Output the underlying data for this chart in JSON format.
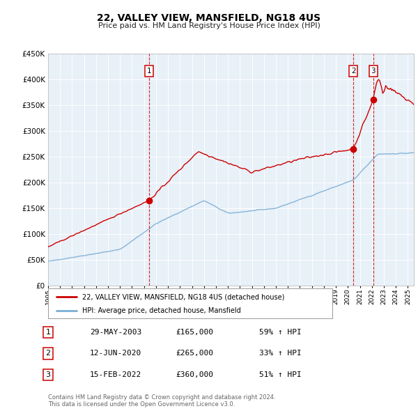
{
  "title": "22, VALLEY VIEW, MANSFIELD, NG18 4US",
  "subtitle": "Price paid vs. HM Land Registry's House Price Index (HPI)",
  "background_color": "#ffffff",
  "plot_background": "#e8f0f8",
  "grid_color": "#c8d8e8",
  "legend_label_red": "22, VALLEY VIEW, MANSFIELD, NG18 4US (detached house)",
  "legend_label_blue": "HPI: Average price, detached house, Mansfield",
  "footer": "Contains HM Land Registry data © Crown copyright and database right 2024.\nThis data is licensed under the Open Government Licence v3.0.",
  "red_color": "#cc0000",
  "blue_color": "#7aaed6",
  "sale_points": [
    {
      "label": "1",
      "date": "29-MAY-2003",
      "price": 165000,
      "hpi_pct": "59% ↑ HPI",
      "x": 2003.41
    },
    {
      "label": "2",
      "date": "12-JUN-2020",
      "price": 265000,
      "hpi_pct": "33% ↑ HPI",
      "x": 2020.45
    },
    {
      "label": "3",
      "date": "15-FEB-2022",
      "price": 360000,
      "hpi_pct": "51% ↑ HPI",
      "x": 2022.12
    }
  ],
  "ylim": [
    0,
    450000
  ],
  "xlim": [
    1995,
    2025.5
  ],
  "yticks": [
    0,
    50000,
    100000,
    150000,
    200000,
    250000,
    300000,
    350000,
    400000,
    450000
  ],
  "xticks": [
    1995,
    1996,
    1997,
    1998,
    1999,
    2000,
    2001,
    2002,
    2003,
    2004,
    2005,
    2006,
    2007,
    2008,
    2009,
    2010,
    2011,
    2012,
    2013,
    2014,
    2015,
    2016,
    2017,
    2018,
    2019,
    2020,
    2021,
    2022,
    2023,
    2024,
    2025
  ],
  "table_rows": [
    {
      "num": "1",
      "date": "29-MAY-2003",
      "price": "£165,000",
      "hpi": "59% ↑ HPI"
    },
    {
      "num": "2",
      "date": "12-JUN-2020",
      "price": "£265,000",
      "hpi": "33% ↑ HPI"
    },
    {
      "num": "3",
      "date": "15-FEB-2022",
      "price": "£360,000",
      "hpi": "51% ↑ HPI"
    }
  ]
}
